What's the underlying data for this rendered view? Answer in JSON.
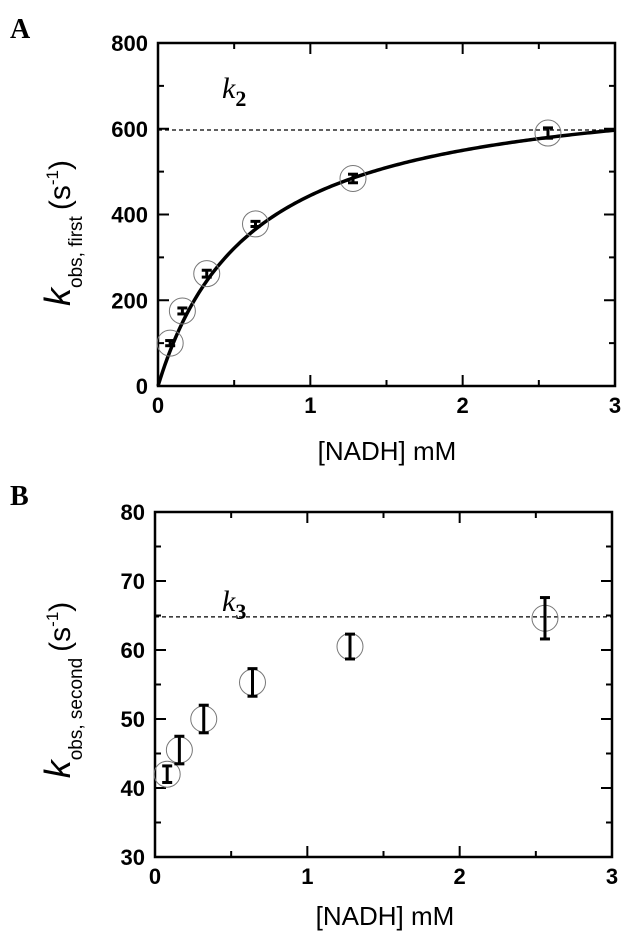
{
  "chart_data": [
    {
      "type": "scatter",
      "panel_label": "A",
      "xlabel": "[NADH] mM",
      "ylabel": {
        "symbol": "k",
        "subscript": "obs, first",
        "unit_open": "(s",
        "unit_sup": "-1",
        "unit_close": ")"
      },
      "xlim": [
        0,
        3
      ],
      "ylim": [
        0,
        800
      ],
      "xticks": [
        0,
        1,
        2,
        3
      ],
      "yticks": [
        0,
        200,
        400,
        600,
        800
      ],
      "x_tick_labels": [
        "0",
        "1",
        "2",
        "3"
      ],
      "y_tick_labels": [
        "0",
        "200",
        "400",
        "600",
        "800"
      ],
      "grid": false,
      "series": [
        {
          "marker": "open-circle-with-errorbar",
          "x": [
            0.08,
            0.16,
            0.32,
            0.64,
            1.28,
            2.56
          ],
          "y": [
            100,
            175,
            262,
            378,
            484,
            590
          ],
          "error": [
            6,
            7,
            8,
            6,
            10,
            12
          ]
        }
      ],
      "fit": {
        "kind": "hyperbolic",
        "vmax": 720,
        "km": 0.62
      },
      "reference_line": {
        "y": 597,
        "style": "dashed",
        "label_symbol": "k",
        "label_subscript": "2"
      }
    },
    {
      "type": "scatter",
      "panel_label": "B",
      "xlabel": "[NADH] mM",
      "ylabel": {
        "symbol": "k",
        "subscript": "obs, second",
        "unit_open": "(s",
        "unit_sup": "-1",
        "unit_close": ")"
      },
      "xlim": [
        0,
        3
      ],
      "ylim": [
        30,
        80
      ],
      "xticks": [
        0,
        1,
        2,
        3
      ],
      "yticks": [
        30,
        40,
        50,
        60,
        70,
        80
      ],
      "x_tick_labels": [
        "0",
        "1",
        "2",
        "3"
      ],
      "y_tick_labels": [
        "30",
        "40",
        "50",
        "60",
        "70",
        "80"
      ],
      "grid": false,
      "series": [
        {
          "marker": "open-circle-with-errorbar",
          "x": [
            0.08,
            0.16,
            0.32,
            0.64,
            1.28,
            2.56
          ],
          "y": [
            42,
            45.5,
            50,
            55.3,
            60.5,
            64.6
          ],
          "error": [
            1.2,
            2.0,
            2.0,
            2.0,
            1.8,
            3.0
          ]
        }
      ],
      "reference_line": {
        "y": 64.8,
        "style": "dashed",
        "label_symbol": "k",
        "label_subscript": "3"
      }
    }
  ]
}
